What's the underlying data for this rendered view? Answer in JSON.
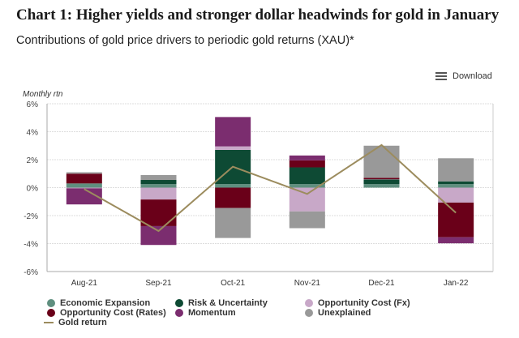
{
  "title": "Chart 1: Higher yields and stronger dollar headwinds for gold in January",
  "subtitle": "Contributions of gold price drivers to periodic gold returns (XAU)*",
  "download_label": "Download",
  "chart_data": {
    "type": "bar",
    "stacked": true,
    "ylabel": "Monthly rtn",
    "ylim": [
      -6,
      6
    ],
    "yticks": [
      6,
      4,
      2,
      0,
      -2,
      -4,
      -6
    ],
    "ytick_labels": [
      "6%",
      "4%",
      "2%",
      "0%",
      "-2%",
      "-4%",
      "-6%"
    ],
    "grid": true,
    "legend_position": "bottom",
    "categories": [
      "Aug-21",
      "Sep-21",
      "Oct-21",
      "Nov-21",
      "Dec-21",
      "Jan-22"
    ],
    "series": [
      {
        "name": "Economic Expansion",
        "color": "#5f8f7f",
        "values": [
          0.3,
          0.25,
          0.25,
          0.25,
          0.25,
          0.25
        ]
      },
      {
        "name": "Risk & Uncertainty",
        "color": "#0e4a34",
        "values": [
          0,
          0.3,
          2.45,
          1.2,
          0.33,
          0.2
        ]
      },
      {
        "name": "Opportunity Cost (Fx)",
        "color": "#c8a8c8",
        "values": [
          -0.05,
          -0.85,
          0.25,
          -1.7,
          0.02,
          -1.07
        ]
      },
      {
        "name": "Opportunity Cost (Rates)",
        "color": "#6a0019",
        "values": [
          0.7,
          -1.9,
          -1.45,
          0.5,
          0.1,
          -2.48
        ]
      },
      {
        "name": "Momentum",
        "color": "#7b2d6f",
        "values": [
          -1.15,
          -1.35,
          2.1,
          0.35,
          0,
          -0.43
        ]
      },
      {
        "name": "Unexplained",
        "color": "#999999",
        "values": [
          0.1,
          0.35,
          -2.15,
          -1.2,
          2.3,
          1.65
        ]
      }
    ],
    "line": {
      "name": "Gold return",
      "color": "#9c8c5e",
      "values": [
        -0.1,
        -3.1,
        1.5,
        -0.45,
        3.05,
        -1.8
      ]
    }
  }
}
